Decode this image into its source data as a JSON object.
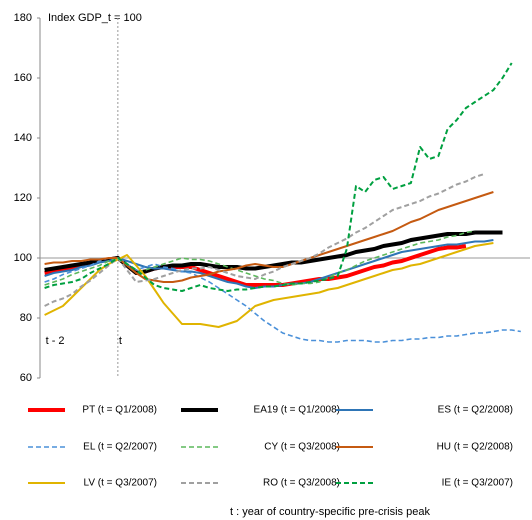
{
  "chart_data": {
    "type": "line",
    "ylabel": "Index  GDP_t = 100",
    "footnote": "t : year of country-specific  pre-crisis peak",
    "annotations": [
      {
        "text": "t - 2",
        "x": -8
      },
      {
        "text": "t",
        "x": 0
      }
    ],
    "vline": 0,
    "reference_line": 100,
    "xlim": [
      -8.5,
      45
    ],
    "ylim": [
      60,
      180
    ],
    "yticks": [
      60,
      80,
      100,
      120,
      140,
      160,
      180
    ],
    "x": [
      -8,
      -7,
      -6,
      -5,
      -4,
      -3,
      -2,
      -1,
      0,
      1,
      2,
      3,
      4,
      5,
      6,
      7,
      8,
      9,
      10,
      11,
      12,
      13,
      14,
      15,
      16,
      17,
      18,
      19,
      20,
      21,
      22,
      23,
      24,
      25,
      26,
      27,
      28,
      29,
      30,
      31,
      32,
      33,
      34,
      35,
      36,
      37,
      38,
      39,
      40,
      41,
      42,
      43,
      44
    ],
    "series": [
      {
        "name": "PT (t = Q1/2008)",
        "color": "#ff0000",
        "linewidth": 4,
        "style": "solid",
        "values": [
          95,
          95.5,
          96,
          97,
          97.5,
          98,
          99,
          99.5,
          100,
          97.5,
          95,
          95.5,
          96.5,
          97,
          97,
          97,
          97,
          96,
          95,
          94,
          93,
          92,
          91,
          91,
          91,
          91,
          91,
          91.5,
          92,
          92.5,
          93,
          93,
          93.5,
          94,
          95,
          96,
          97,
          97.5,
          98.5,
          99,
          100,
          101,
          102,
          103,
          103.5,
          103.5,
          104,
          null,
          null,
          null,
          null,
          null,
          null
        ]
      },
      {
        "name": "EA19 (t = Q1/2008)",
        "color": "#000000",
        "linewidth": 4,
        "style": "solid",
        "values": [
          96,
          96.5,
          97,
          97.5,
          98,
          98.5,
          99,
          99.5,
          100,
          97.5,
          95,
          95.5,
          96.5,
          97,
          97.5,
          97.5,
          98,
          98,
          97.5,
          97,
          97,
          97,
          96.5,
          96.5,
          97,
          97.5,
          98,
          98.5,
          98.5,
          99,
          99.5,
          100,
          100.5,
          101,
          102,
          102.5,
          103,
          104,
          104.5,
          105,
          106,
          106.5,
          107,
          107.5,
          108,
          108,
          108,
          108.5,
          108.5,
          108.5,
          108.5,
          null,
          null
        ]
      },
      {
        "name": "ES (t = Q2/2008)",
        "color": "#2e75b6",
        "linewidth": 2,
        "style": "solid",
        "values": [
          94,
          95,
          95.5,
          96,
          97,
          97.5,
          98.5,
          99,
          100,
          99,
          98,
          97,
          96.5,
          96.5,
          96,
          95.5,
          95.5,
          95,
          94,
          93,
          92,
          91.5,
          90.5,
          90,
          90.5,
          90.5,
          91,
          91.5,
          91.5,
          92,
          93,
          94,
          95,
          96,
          97,
          98,
          99,
          100,
          101,
          102,
          102.5,
          103,
          103.5,
          104,
          104.5,
          104.5,
          105,
          105.5,
          105.5,
          106,
          null,
          null,
          null
        ]
      },
      {
        "name": "EL (t = Q2/2007)",
        "color": "#4a90d9",
        "linewidth": 1.6,
        "style": "dashed",
        "values": [
          92,
          93,
          94.5,
          95.5,
          96.5,
          97.5,
          99,
          100,
          100,
          98,
          96,
          97,
          98,
          97,
          96.5,
          95.5,
          95,
          93.5,
          92,
          90,
          88,
          86,
          84,
          81.5,
          79,
          77,
          75,
          74,
          73,
          72.5,
          72.5,
          72,
          72,
          72.5,
          72.5,
          72.5,
          72,
          72,
          72.5,
          72.5,
          73,
          73,
          73.5,
          73.5,
          74,
          74,
          74.5,
          75,
          75,
          75.5,
          76,
          76,
          75.5
        ]
      },
      {
        "name": "CY (t = Q3/2008)",
        "color": "#5cb85c",
        "linewidth": 1.6,
        "style": "dashed",
        "values": [
          91,
          92,
          93,
          94.5,
          95.5,
          96.5,
          97.5,
          99,
          100,
          97.5,
          95,
          96,
          97,
          98,
          99,
          100,
          99.5,
          99.5,
          99,
          98,
          97,
          96,
          95,
          94,
          93,
          92.5,
          91.5,
          91,
          91.5,
          91.5,
          92,
          93.5,
          95,
          96,
          97.5,
          99,
          100,
          101,
          102,
          103,
          104,
          105,
          105.5,
          106,
          107,
          107.5,
          108.5,
          109,
          null,
          null,
          null,
          null,
          null
        ]
      },
      {
        "name": "HU (t = Q2/2008)",
        "color": "#c55a11",
        "linewidth": 2,
        "style": "solid",
        "values": [
          98,
          98.5,
          98.5,
          99,
          99,
          99.5,
          99.5,
          100,
          100,
          97.5,
          95,
          93,
          92.5,
          92,
          92,
          92.5,
          93.5,
          94,
          94.5,
          95.5,
          96,
          96.5,
          97.5,
          98,
          97.5,
          97,
          97,
          98,
          99,
          100,
          101,
          102,
          103,
          104,
          105,
          106,
          107,
          108,
          109,
          110.5,
          112,
          113,
          114.5,
          116,
          117,
          118,
          119,
          120,
          121,
          122,
          null,
          null,
          null
        ]
      },
      {
        "name": "LV (t = Q3/2007)",
        "color": "#e0b400",
        "linewidth": 2,
        "style": "solid",
        "values": [
          81,
          82.5,
          84,
          87,
          90,
          93,
          96,
          98,
          99.5,
          101,
          97.5,
          94,
          89.5,
          85,
          81.5,
          78,
          78,
          78,
          77.5,
          77,
          78,
          79,
          81.5,
          84,
          85,
          86,
          86.5,
          87,
          87.5,
          88,
          88.5,
          89.5,
          90,
          91,
          92,
          93,
          94,
          95,
          96,
          96.5,
          97.5,
          98,
          99,
          100,
          101,
          102,
          103,
          104,
          104.5,
          105,
          null,
          null,
          null
        ]
      },
      {
        "name": "RO (t = Q3/2008)",
        "color": "#a0a0a0",
        "linewidth": 2,
        "style": "dashed",
        "values": [
          84,
          85.5,
          86.5,
          88,
          90.5,
          92.5,
          95,
          97.5,
          100,
          96,
          92,
          92.5,
          93,
          94,
          95,
          96,
          96.5,
          96.5,
          97,
          96,
          95,
          94,
          93.5,
          93,
          94.5,
          95.5,
          97,
          98,
          99,
          100,
          101.5,
          103.5,
          105,
          106.5,
          108.5,
          110,
          112,
          114,
          116,
          117,
          118,
          119,
          120.5,
          121.5,
          123,
          124.5,
          125.5,
          127,
          128,
          null,
          null,
          null,
          null
        ]
      },
      {
        "name": "IE (t = Q3/2007)",
        "color": "#00a040",
        "linewidth": 2,
        "style": "dashed",
        "values": [
          90,
          91,
          91.5,
          92,
          93,
          95,
          96.5,
          98,
          100,
          98,
          96,
          93.5,
          91,
          90,
          89.5,
          89,
          90,
          91,
          90,
          89.5,
          89,
          89.5,
          89.5,
          90,
          90.5,
          90.5,
          91,
          91.5,
          91.5,
          92,
          92.5,
          93,
          94,
          103,
          124,
          122,
          126,
          127,
          123,
          124,
          125,
          137,
          133,
          134,
          143,
          146,
          150,
          152,
          154,
          156,
          160,
          165,
          null
        ]
      }
    ]
  }
}
